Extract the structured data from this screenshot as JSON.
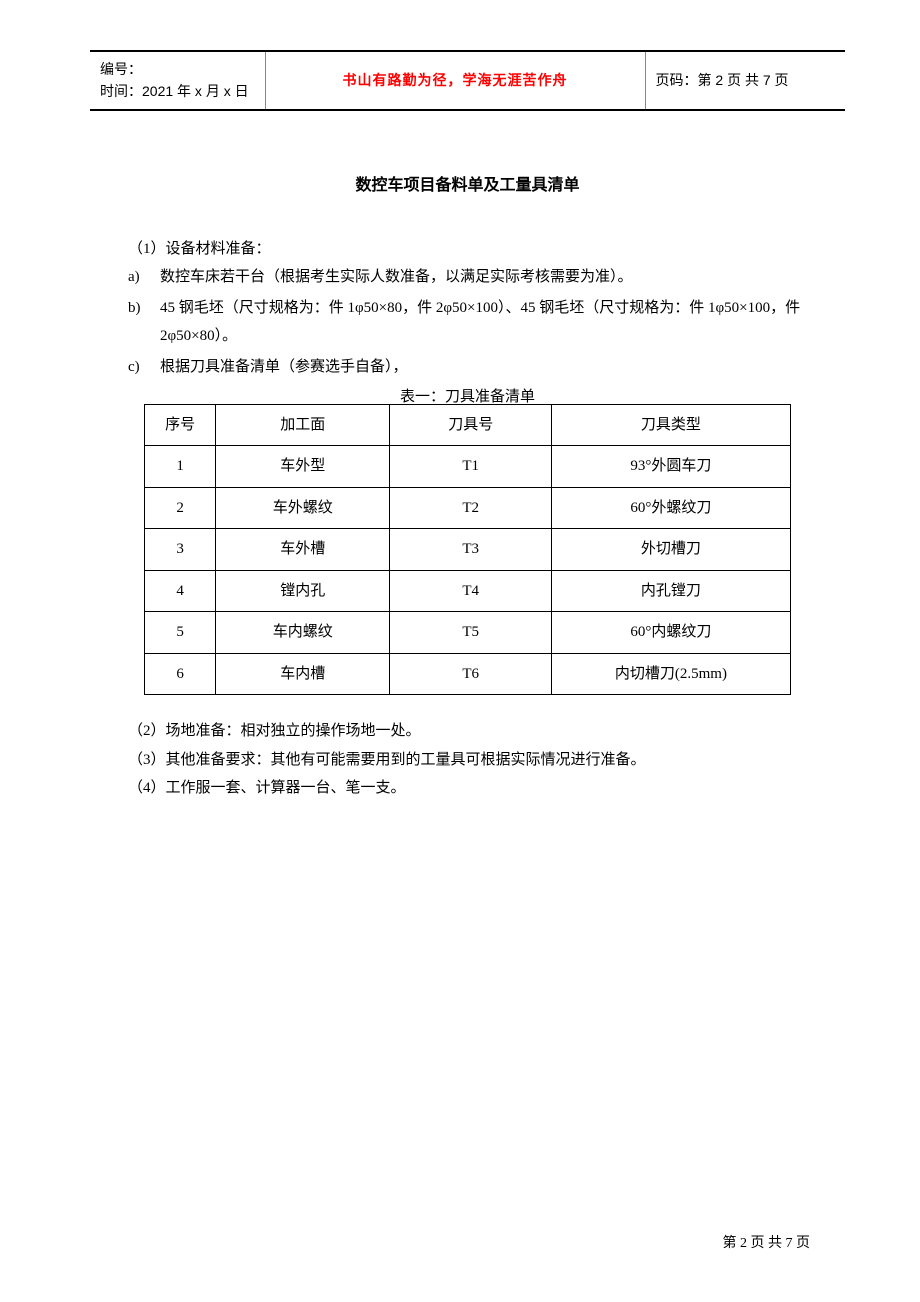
{
  "header": {
    "doc_no_label": "编号：",
    "time_label": "时间：2021 年 x 月 x 日",
    "motto": "书山有路勤为径，学海无涯苦作舟",
    "page_label": "页码：第 2 页  共 7 页"
  },
  "title": "数控车项目备料单及工量具清单",
  "section1": {
    "heading": "（1）设备材料准备：",
    "items": [
      {
        "marker": "a)",
        "text": "数控车床若干台（根据考生实际人数准备，以满足实际考核需要为准）。"
      },
      {
        "marker": "b)",
        "text": "45 钢毛坯（尺寸规格为：件 1φ50×80，件 2φ50×100）、45 钢毛坯（尺寸规格为：件 1φ50×100，件 2φ50×80）。"
      },
      {
        "marker": "c)",
        "text": "根据刀具准备清单（参赛选手自备），"
      }
    ]
  },
  "table": {
    "caption": "表一：刀具准备清单",
    "headers": {
      "seq": "序号",
      "surface": "加工面",
      "tool_no": "刀具号",
      "tool_type": "刀具类型"
    },
    "rows": [
      {
        "seq": "1",
        "surface": "车外型",
        "tool_no": "T1",
        "tool_type": "93°外圆车刀"
      },
      {
        "seq": "2",
        "surface": "车外螺纹",
        "tool_no": "T2",
        "tool_type": "60°外螺纹刀"
      },
      {
        "seq": "3",
        "surface": "车外槽",
        "tool_no": "T3",
        "tool_type": "外切槽刀"
      },
      {
        "seq": "4",
        "surface": "镗内孔",
        "tool_no": "T4",
        "tool_type": "内孔镗刀"
      },
      {
        "seq": "5",
        "surface": "车内螺纹",
        "tool_no": "T5",
        "tool_type": "60°内螺纹刀"
      },
      {
        "seq": "6",
        "surface": "车内槽",
        "tool_no": "T6",
        "tool_type": "内切槽刀(2.5mm)"
      }
    ]
  },
  "section2": "（2）场地准备：相对独立的操作场地一处。",
  "section3": "（3）其他准备要求：其他有可能需要用到的工量具可根据实际情况进行准备。",
  "section4": "（4）工作服一套、计算器一台、笔一支。",
  "footer": "第 2 页 共 7 页"
}
